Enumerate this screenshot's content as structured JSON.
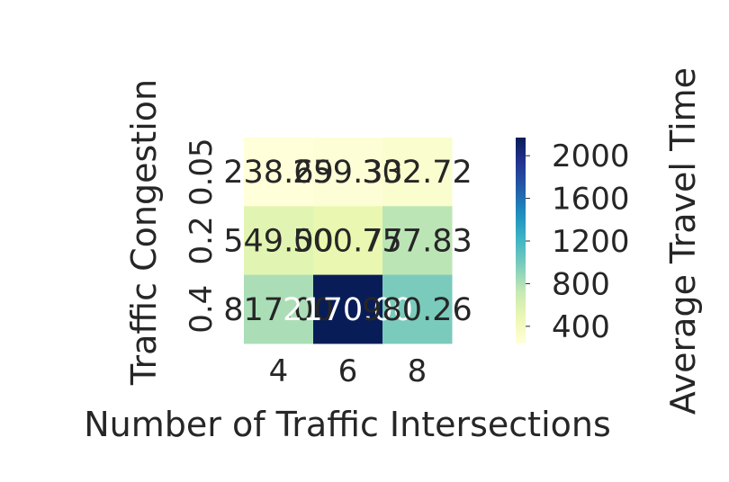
{
  "chart_data": {
    "type": "heatmap",
    "title": "",
    "xlabel": "Number of Traffic Intersections",
    "ylabel": "Traffic Congestion",
    "x_categories": [
      "4",
      "6",
      "8"
    ],
    "y_categories": [
      "0.05",
      "0.2",
      "0.4"
    ],
    "values": [
      [
        238.69,
        259.33,
        302.72
      ],
      [
        549.0,
        500.77,
        757.83
      ],
      [
        817.0,
        2170.0,
        980.26
      ]
    ],
    "value_labels": [
      [
        "238.69",
        "259.33",
        "302.72"
      ],
      [
        "549.00",
        "500.77",
        "757.83"
      ],
      [
        "817.00",
        "2170.00",
        "980.26"
      ]
    ],
    "colormap": "YlGnBu",
    "colorbar": {
      "label": "Average Travel Time",
      "min": 238.69,
      "max": 2170,
      "ticks": [
        400,
        800,
        1200,
        1600,
        2000
      ],
      "tick_labels": [
        "400",
        "800",
        "1200",
        "1600",
        "2000"
      ]
    },
    "grid": false,
    "legend": "colorbar-right"
  }
}
